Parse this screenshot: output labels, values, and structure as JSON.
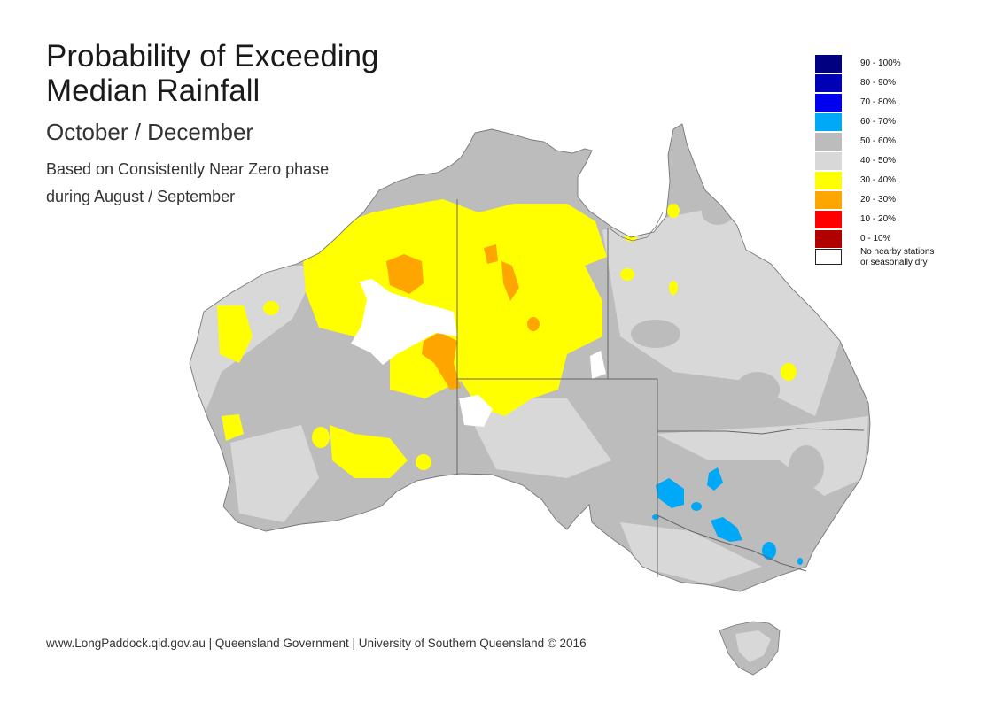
{
  "title_line1": "Probability of Exceeding",
  "title_line2": "Median Rainfall",
  "period": "October / December",
  "phase_line1": "Based on Consistently Near Zero phase",
  "phase_line2": "during August / September",
  "credits": "www.LongPaddock.qld.gov.au | Queensland Government | University of Southern Queensland © 2016",
  "legend": [
    {
      "label": "90 - 100%",
      "color": "#000080"
    },
    {
      "label": "80 - 90%",
      "color": "#0000b4"
    },
    {
      "label": "70 - 80%",
      "color": "#0000f0"
    },
    {
      "label": "60 - 70%",
      "color": "#00a8f8"
    },
    {
      "label": "50 - 60%",
      "color": "#bcbcbc"
    },
    {
      "label": "40 - 50%",
      "color": "#d8d8d8"
    },
    {
      "label": "30 - 40%",
      "color": "#ffff00"
    },
    {
      "label": "20 - 30%",
      "color": "#ffa500"
    },
    {
      "label": "10 - 20%",
      "color": "#ff0000"
    },
    {
      "label": "0 - 10%",
      "color": "#b00000"
    }
  ],
  "legend_nodata_line1": "No nearby stations",
  "legend_nodata_line2": "or seasonally dry",
  "legend_nodata_color": "#ffffff"
}
